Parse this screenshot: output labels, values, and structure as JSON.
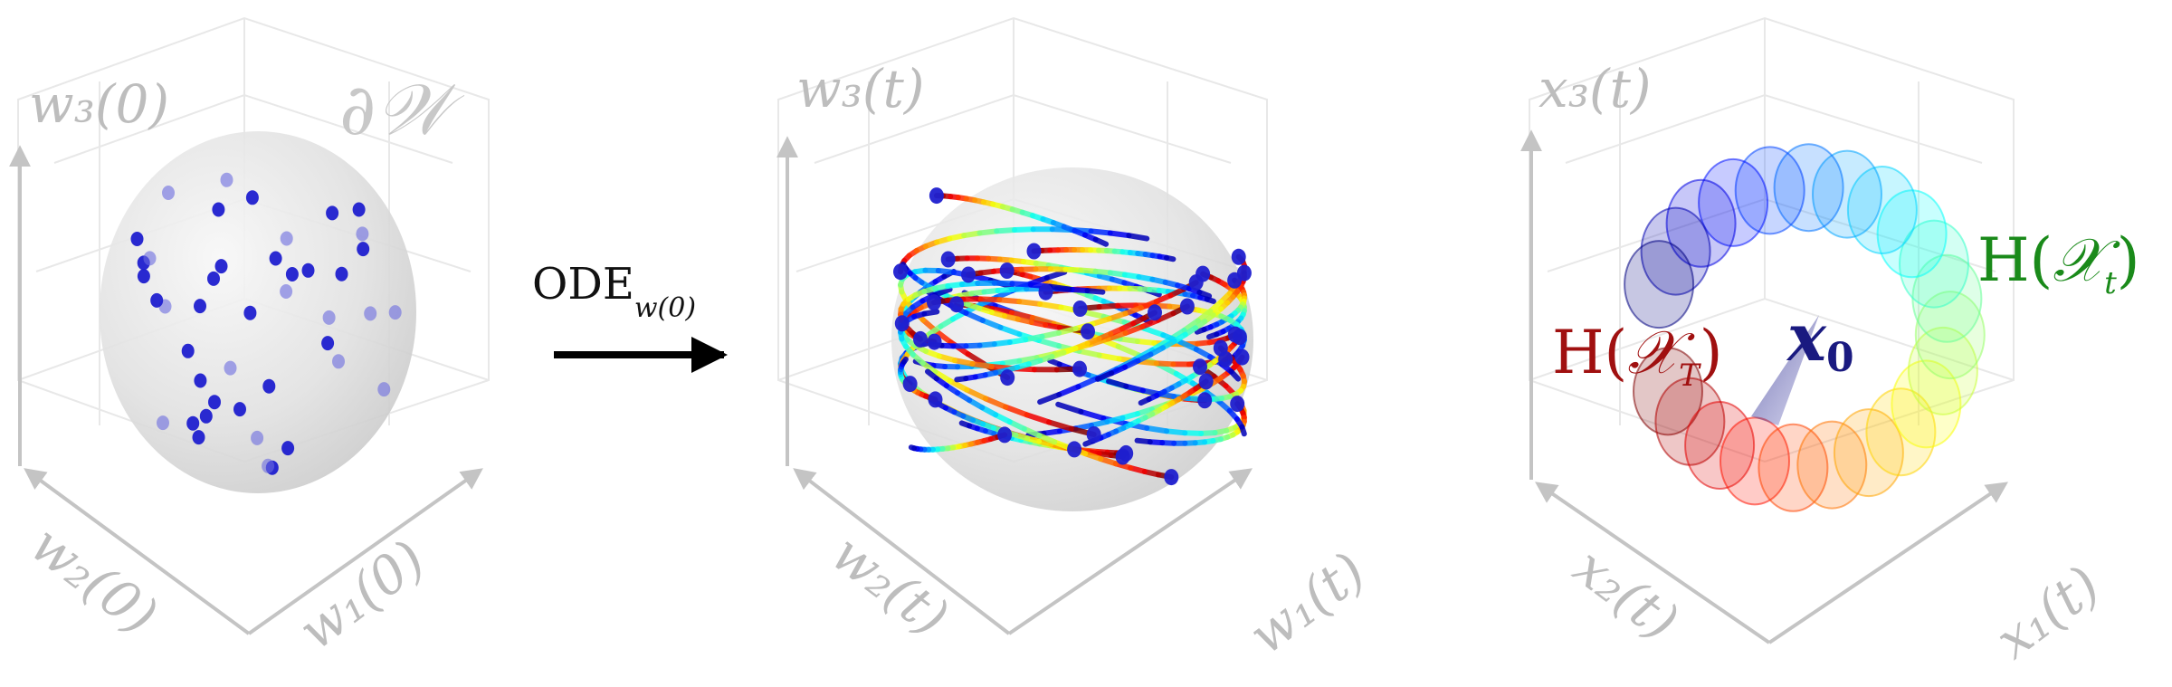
{
  "panels": {
    "left": {
      "axis_w3": "w₃(0)",
      "axis_w2": "w₂(0)",
      "axis_w1": "w₁(0)",
      "boundary": "∂𝒲"
    },
    "arrow": {
      "label": "ODE",
      "subscript": "w(0)"
    },
    "middle": {
      "axis_w3": "w₃(t)",
      "axis_w2": "w₂(t)",
      "axis_w1": "w₁(t)"
    },
    "right": {
      "axis_x3": "x₃(t)",
      "axis_x2": "x₂(t)",
      "axis_x1": "x₁(t)",
      "h_t_prefix": "H(",
      "h_t_symbol": "𝒳",
      "h_t_sub": "t",
      "h_t_suffix": ")",
      "h_T_prefix": "H(",
      "h_T_symbol": "𝒳",
      "h_T_sub": "T",
      "h_T_suffix": ")",
      "x0_symbol": "x",
      "x0_sub": "0"
    }
  },
  "colors": {
    "axis": "#c4c4c4",
    "grid": "#e6e6e6",
    "point": "#1f1fcf",
    "h_t": "#1a8a1a",
    "h_T": "#a01010",
    "x0": "#1a1a80"
  }
}
